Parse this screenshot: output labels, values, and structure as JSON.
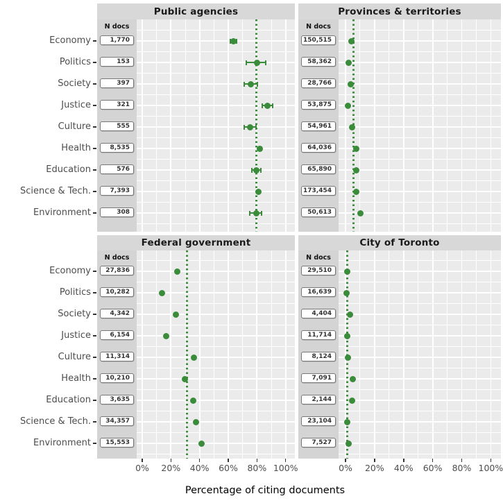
{
  "page": {
    "background": "#ffffff"
  },
  "chart_data": {
    "type": "scatter",
    "layout": "2x2-facets",
    "title": "",
    "xlabel": "Percentage of citing documents",
    "ylabel": "",
    "grid": true,
    "legend": null,
    "ndocs_header": "N docs",
    "categories": [
      "Economy",
      "Politics",
      "Society",
      "Justice",
      "Culture",
      "Health",
      "Education",
      "Science & Tech.",
      "Environment"
    ],
    "x_axis": {
      "range_pct": [
        0,
        100
      ],
      "ticks_pct": [
        0,
        20,
        40,
        60,
        80,
        100
      ],
      "tick_labels": [
        "0%",
        "20%",
        "40%",
        "60%",
        "80%",
        "100%"
      ],
      "minor_ticks_pct": [
        10,
        30,
        50,
        70,
        90
      ]
    },
    "colors": {
      "dot": "#3a8c3a",
      "ref_line": "#3a8c3a",
      "panel_bg": "#ebebeb",
      "strip_bg": "#d8d8d8",
      "ndocs_strip_bg": "#d4d4d4",
      "gridline": "#ffffff",
      "axis_text": "#4d4d4d",
      "strip_text": "#1a1a1a",
      "box_border": "#777777",
      "box_bg": "#ffffff",
      "tick_mark": "#333333"
    },
    "facets": [
      {
        "title": "Public agencies",
        "position": "top-left",
        "ref_line_pct": 79.5,
        "rows": [
          {
            "category": "Economy",
            "n_docs": "1,770",
            "value_pct": 63.6,
            "ci_low_pct": 61.5,
            "ci_high_pct": 65.8
          },
          {
            "category": "Politics",
            "n_docs": "153",
            "value_pct": 80.2,
            "ci_low_pct": 72.6,
            "ci_high_pct": 86.3
          },
          {
            "category": "Society",
            "n_docs": "397",
            "value_pct": 75.8,
            "ci_low_pct": 71.0,
            "ci_high_pct": 80.2
          },
          {
            "category": "Justice",
            "n_docs": "321",
            "value_pct": 87.4,
            "ci_low_pct": 83.8,
            "ci_high_pct": 90.8
          },
          {
            "category": "Culture",
            "n_docs": "555",
            "value_pct": 75.3,
            "ci_low_pct": 71.0,
            "ci_high_pct": 79.3
          },
          {
            "category": "Health",
            "n_docs": "8,535",
            "value_pct": 82.2,
            "ci_low_pct": 81.3,
            "ci_high_pct": 83.0
          },
          {
            "category": "Education",
            "n_docs": "576",
            "value_pct": 79.8,
            "ci_low_pct": 76.6,
            "ci_high_pct": 82.9
          },
          {
            "category": "Science & Tech.",
            "n_docs": "7,393",
            "value_pct": 81.1,
            "ci_low_pct": 80.2,
            "ci_high_pct": 82.0
          },
          {
            "category": "Environment",
            "n_docs": "308",
            "value_pct": 79.5,
            "ci_low_pct": 74.8,
            "ci_high_pct": 83.4
          }
        ]
      },
      {
        "title": "Provinces & territories",
        "position": "top-right",
        "ref_line_pct": 5.4,
        "rows": [
          {
            "category": "Economy",
            "n_docs": "150,515",
            "value_pct": 4.2,
            "ci_low_pct": null,
            "ci_high_pct": null
          },
          {
            "category": "Politics",
            "n_docs": "58,362",
            "value_pct": 2.1,
            "ci_low_pct": null,
            "ci_high_pct": null
          },
          {
            "category": "Society",
            "n_docs": "28,766",
            "value_pct": 3.8,
            "ci_low_pct": null,
            "ci_high_pct": null
          },
          {
            "category": "Justice",
            "n_docs": "53,875",
            "value_pct": 1.6,
            "ci_low_pct": null,
            "ci_high_pct": null
          },
          {
            "category": "Culture",
            "n_docs": "54,961",
            "value_pct": 4.5,
            "ci_low_pct": null,
            "ci_high_pct": null
          },
          {
            "category": "Health",
            "n_docs": "64,036",
            "value_pct": 7.5,
            "ci_low_pct": null,
            "ci_high_pct": null
          },
          {
            "category": "Education",
            "n_docs": "65,890",
            "value_pct": 7.2,
            "ci_low_pct": null,
            "ci_high_pct": null
          },
          {
            "category": "Science & Tech.",
            "n_docs": "173,454",
            "value_pct": 7.6,
            "ci_low_pct": null,
            "ci_high_pct": null
          },
          {
            "category": "Environment",
            "n_docs": "50,613",
            "value_pct": 10.5,
            "ci_low_pct": null,
            "ci_high_pct": null
          }
        ]
      },
      {
        "title": "Federal government",
        "position": "bottom-left",
        "ref_line_pct": 31.0,
        "rows": [
          {
            "category": "Economy",
            "n_docs": "27,836",
            "value_pct": 24.2,
            "ci_low_pct": null,
            "ci_high_pct": null
          },
          {
            "category": "Politics",
            "n_docs": "10,282",
            "value_pct": 14.0,
            "ci_low_pct": null,
            "ci_high_pct": null
          },
          {
            "category": "Society",
            "n_docs": "4,342",
            "value_pct": 23.4,
            "ci_low_pct": null,
            "ci_high_pct": null
          },
          {
            "category": "Justice",
            "n_docs": "6,154",
            "value_pct": 16.9,
            "ci_low_pct": null,
            "ci_high_pct": null
          },
          {
            "category": "Culture",
            "n_docs": "11,314",
            "value_pct": 35.9,
            "ci_low_pct": null,
            "ci_high_pct": null
          },
          {
            "category": "Health",
            "n_docs": "10,210",
            "value_pct": 29.8,
            "ci_low_pct": null,
            "ci_high_pct": null
          },
          {
            "category": "Education",
            "n_docs": "3,635",
            "value_pct": 35.7,
            "ci_low_pct": null,
            "ci_high_pct": null
          },
          {
            "category": "Science & Tech.",
            "n_docs": "34,357",
            "value_pct": 37.7,
            "ci_low_pct": null,
            "ci_high_pct": null
          },
          {
            "category": "Environment",
            "n_docs": "15,553",
            "value_pct": 41.5,
            "ci_low_pct": null,
            "ci_high_pct": null
          }
        ]
      },
      {
        "title": "City of Toronto",
        "position": "bottom-right",
        "ref_line_pct": 1.2,
        "rows": [
          {
            "category": "Economy",
            "n_docs": "29,510",
            "value_pct": 1.1,
            "ci_low_pct": null,
            "ci_high_pct": null
          },
          {
            "category": "Politics",
            "n_docs": "16,639",
            "value_pct": 0.7,
            "ci_low_pct": null,
            "ci_high_pct": null
          },
          {
            "category": "Society",
            "n_docs": "4,404",
            "value_pct": 3.3,
            "ci_low_pct": null,
            "ci_high_pct": null
          },
          {
            "category": "Justice",
            "n_docs": "11,714",
            "value_pct": 1.1,
            "ci_low_pct": null,
            "ci_high_pct": null
          },
          {
            "category": "Culture",
            "n_docs": "8,124",
            "value_pct": 1.8,
            "ci_low_pct": null,
            "ci_high_pct": null
          },
          {
            "category": "Health",
            "n_docs": "7,091",
            "value_pct": 5.0,
            "ci_low_pct": null,
            "ci_high_pct": null
          },
          {
            "category": "Education",
            "n_docs": "2,144",
            "value_pct": 4.3,
            "ci_low_pct": null,
            "ci_high_pct": null
          },
          {
            "category": "Science & Tech.",
            "n_docs": "23,104",
            "value_pct": 1.4,
            "ci_low_pct": null,
            "ci_high_pct": null
          },
          {
            "category": "Environment",
            "n_docs": "7,527",
            "value_pct": 2.1,
            "ci_low_pct": null,
            "ci_high_pct": null
          }
        ]
      }
    ]
  }
}
